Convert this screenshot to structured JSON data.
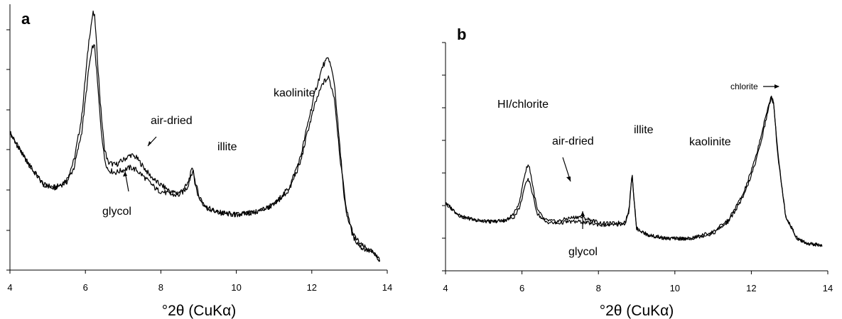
{
  "chart_data": [
    {
      "type": "line",
      "panel": "a",
      "xlabel": "°2θ (CuKα)",
      "ylabel": "",
      "xlim": [
        4,
        14
      ],
      "xticks": [
        4,
        6,
        8,
        10,
        12,
        14
      ],
      "grid": false,
      "legend": "none",
      "series": [
        {
          "key": "air-dried",
          "x": [
            4.0,
            4.3,
            4.6,
            4.9,
            5.2,
            5.5,
            5.7,
            5.9,
            6.0,
            6.1,
            6.2,
            6.25,
            6.3,
            6.4,
            6.5,
            6.6,
            6.8,
            7.0,
            7.2,
            7.35,
            7.5,
            7.7,
            7.9,
            8.1,
            8.3,
            8.5,
            8.7,
            8.8,
            8.85,
            8.9,
            9.0,
            9.2,
            9.5,
            10.0,
            10.5,
            11.0,
            11.4,
            11.7,
            11.9,
            12.1,
            12.3,
            12.45,
            12.6,
            12.75,
            12.9,
            13.1,
            13.3,
            13.6,
            13.8
          ],
          "y": [
            52,
            44,
            37,
            31,
            30,
            33,
            41,
            58,
            74,
            90,
            100,
            98,
            86,
            63,
            46,
            40,
            39,
            41,
            43,
            42,
            39,
            35,
            32,
            30,
            28,
            28,
            31,
            36,
            38,
            33,
            27,
            22,
            20,
            19,
            20,
            23,
            30,
            42,
            56,
            69,
            79,
            82,
            72,
            45,
            22,
            11,
            7,
            4,
            1
          ]
        },
        {
          "key": "glycol",
          "x": [
            4.0,
            4.3,
            4.6,
            4.9,
            5.2,
            5.5,
            5.7,
            5.9,
            6.0,
            6.1,
            6.2,
            6.25,
            6.3,
            6.4,
            6.5,
            6.6,
            6.8,
            7.0,
            7.2,
            7.35,
            7.5,
            7.7,
            7.9,
            8.1,
            8.3,
            8.5,
            8.7,
            8.8,
            8.85,
            8.9,
            9.0,
            9.2,
            9.5,
            10.0,
            10.5,
            11.0,
            11.4,
            11.7,
            11.9,
            12.1,
            12.3,
            12.45,
            12.6,
            12.75,
            12.9,
            13.1,
            13.3,
            13.6,
            13.8
          ],
          "y": [
            52,
            44,
            37,
            31,
            30,
            32,
            38,
            52,
            65,
            79,
            87,
            86,
            76,
            56,
            42,
            37,
            36,
            37,
            38,
            37,
            35,
            32,
            29,
            28,
            27,
            27,
            30,
            35,
            37,
            32,
            26,
            22,
            20,
            19,
            20,
            23,
            29,
            40,
            53,
            64,
            72,
            74,
            66,
            42,
            21,
            10,
            6,
            4,
            1
          ]
        }
      ],
      "annotations": [
        {
          "text": "air-dried",
          "x": 7.35,
          "y": 43
        },
        {
          "text": "glycol",
          "x": 7.1,
          "y": 37
        },
        {
          "text": "illite",
          "x": 8.88,
          "y": 38
        },
        {
          "text": "kaolinite",
          "x": 12.42,
          "y": 82
        }
      ]
    },
    {
      "type": "line",
      "panel": "b",
      "xlabel": "°2θ (CuKα)",
      "ylabel": "",
      "xlim": [
        4,
        14
      ],
      "xticks": [
        4,
        6,
        8,
        10,
        12,
        14
      ],
      "grid": false,
      "legend": "none",
      "series": [
        {
          "key": "air-dried",
          "x": [
            4.0,
            4.4,
            4.8,
            5.2,
            5.6,
            5.8,
            5.95,
            6.05,
            6.15,
            6.2,
            6.3,
            6.4,
            6.6,
            6.9,
            7.2,
            7.5,
            7.8,
            8.1,
            8.4,
            8.7,
            8.8,
            8.85,
            8.88,
            8.92,
            9.0,
            9.3,
            9.8,
            10.4,
            11.0,
            11.4,
            11.8,
            12.1,
            12.3,
            12.45,
            12.52,
            12.58,
            12.7,
            12.9,
            13.2,
            13.5,
            13.85
          ],
          "y": [
            30,
            22,
            20,
            19,
            20,
            24,
            32,
            45,
            53,
            51,
            38,
            26,
            20,
            19,
            21,
            22,
            20,
            18,
            18,
            19,
            26,
            40,
            48,
            36,
            15,
            11,
            9,
            9,
            13,
            20,
            36,
            56,
            74,
            88,
            94,
            90,
            58,
            22,
            9,
            6,
            5
          ]
        },
        {
          "key": "glycol",
          "x": [
            4.0,
            4.4,
            4.8,
            5.2,
            5.6,
            5.8,
            5.95,
            6.05,
            6.15,
            6.2,
            6.3,
            6.4,
            6.6,
            6.9,
            7.2,
            7.5,
            7.8,
            8.1,
            8.4,
            8.7,
            8.8,
            8.85,
            8.88,
            8.92,
            9.0,
            9.3,
            9.8,
            10.4,
            11.0,
            11.4,
            11.8,
            12.1,
            12.3,
            12.45,
            12.52,
            12.58,
            12.7,
            12.9,
            13.2,
            13.5,
            13.85
          ],
          "y": [
            30,
            22,
            20,
            19,
            20,
            22,
            28,
            38,
            44,
            43,
            33,
            24,
            19,
            18,
            19,
            19,
            18,
            17,
            17,
            18,
            25,
            39,
            47,
            35,
            15,
            11,
            9,
            9,
            12,
            19,
            34,
            53,
            71,
            86,
            93,
            89,
            57,
            22,
            9,
            6,
            5
          ]
        }
      ],
      "annotations": [
        {
          "text": "HI/chlorite",
          "x": 6.2,
          "y": 53
        },
        {
          "text": "air-dried",
          "x": 7.3,
          "y": 22
        },
        {
          "text": "glycol",
          "x": 7.5,
          "y": 17
        },
        {
          "text": "illite",
          "x": 8.88,
          "y": 48
        },
        {
          "text": "kaolinite",
          "x": 11.6,
          "y": 45
        },
        {
          "text": "chlorite",
          "x": 12.52,
          "y": 94
        }
      ]
    }
  ]
}
